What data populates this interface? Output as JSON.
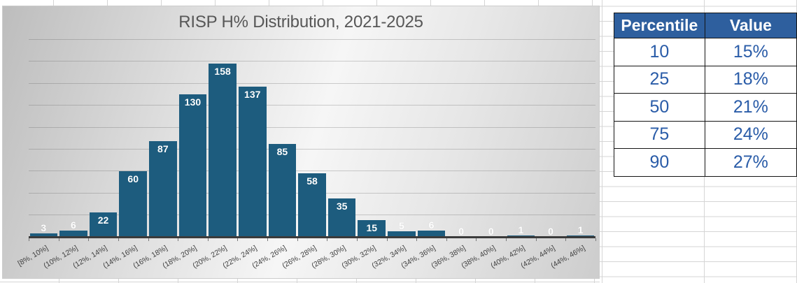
{
  "chart": {
    "title": "RISP H% Distribution, 2021-2025"
  },
  "chart_data": {
    "type": "bar",
    "title": "RISP H% Distribution, 2021-2025",
    "categories": [
      "[8%, 10%]",
      "(10%, 12%]",
      "(12%, 14%]",
      "(14%, 16%]",
      "(16%, 18%]",
      "(18%, 20%]",
      "(20%, 22%]",
      "(22%, 24%]",
      "(24%, 26%]",
      "(26%, 28%]",
      "(28%, 30%]",
      "(30%, 32%]",
      "(32%, 34%]",
      "(34%, 36%]",
      "(36%, 38%]",
      "(38%, 40%]",
      "(40%, 42%]",
      "(42%, 44%]",
      "(44%, 46%]"
    ],
    "values": [
      3,
      6,
      22,
      60,
      87,
      130,
      158,
      137,
      85,
      58,
      35,
      15,
      5,
      6,
      0,
      0,
      1,
      0,
      1
    ],
    "xlabel": "",
    "ylabel": "",
    "ylim": [
      0,
      180
    ],
    "gridline_interval": 20,
    "grid": true,
    "legend": false,
    "data_labels": true,
    "bar_color": "#1d5c7e",
    "label_color": "#ffffff",
    "axis_color": "#3b3b3b"
  },
  "table": {
    "headers": [
      "Percentile",
      "Value"
    ],
    "rows": [
      [
        "10",
        "15%"
      ],
      [
        "25",
        "18%"
      ],
      [
        "50",
        "21%"
      ],
      [
        "75",
        "24%"
      ],
      [
        "90",
        "27%"
      ]
    ],
    "header_bg": "#2e5f9e",
    "header_text_color": "#ffffff",
    "body_text_color": "#2a5ca8"
  }
}
